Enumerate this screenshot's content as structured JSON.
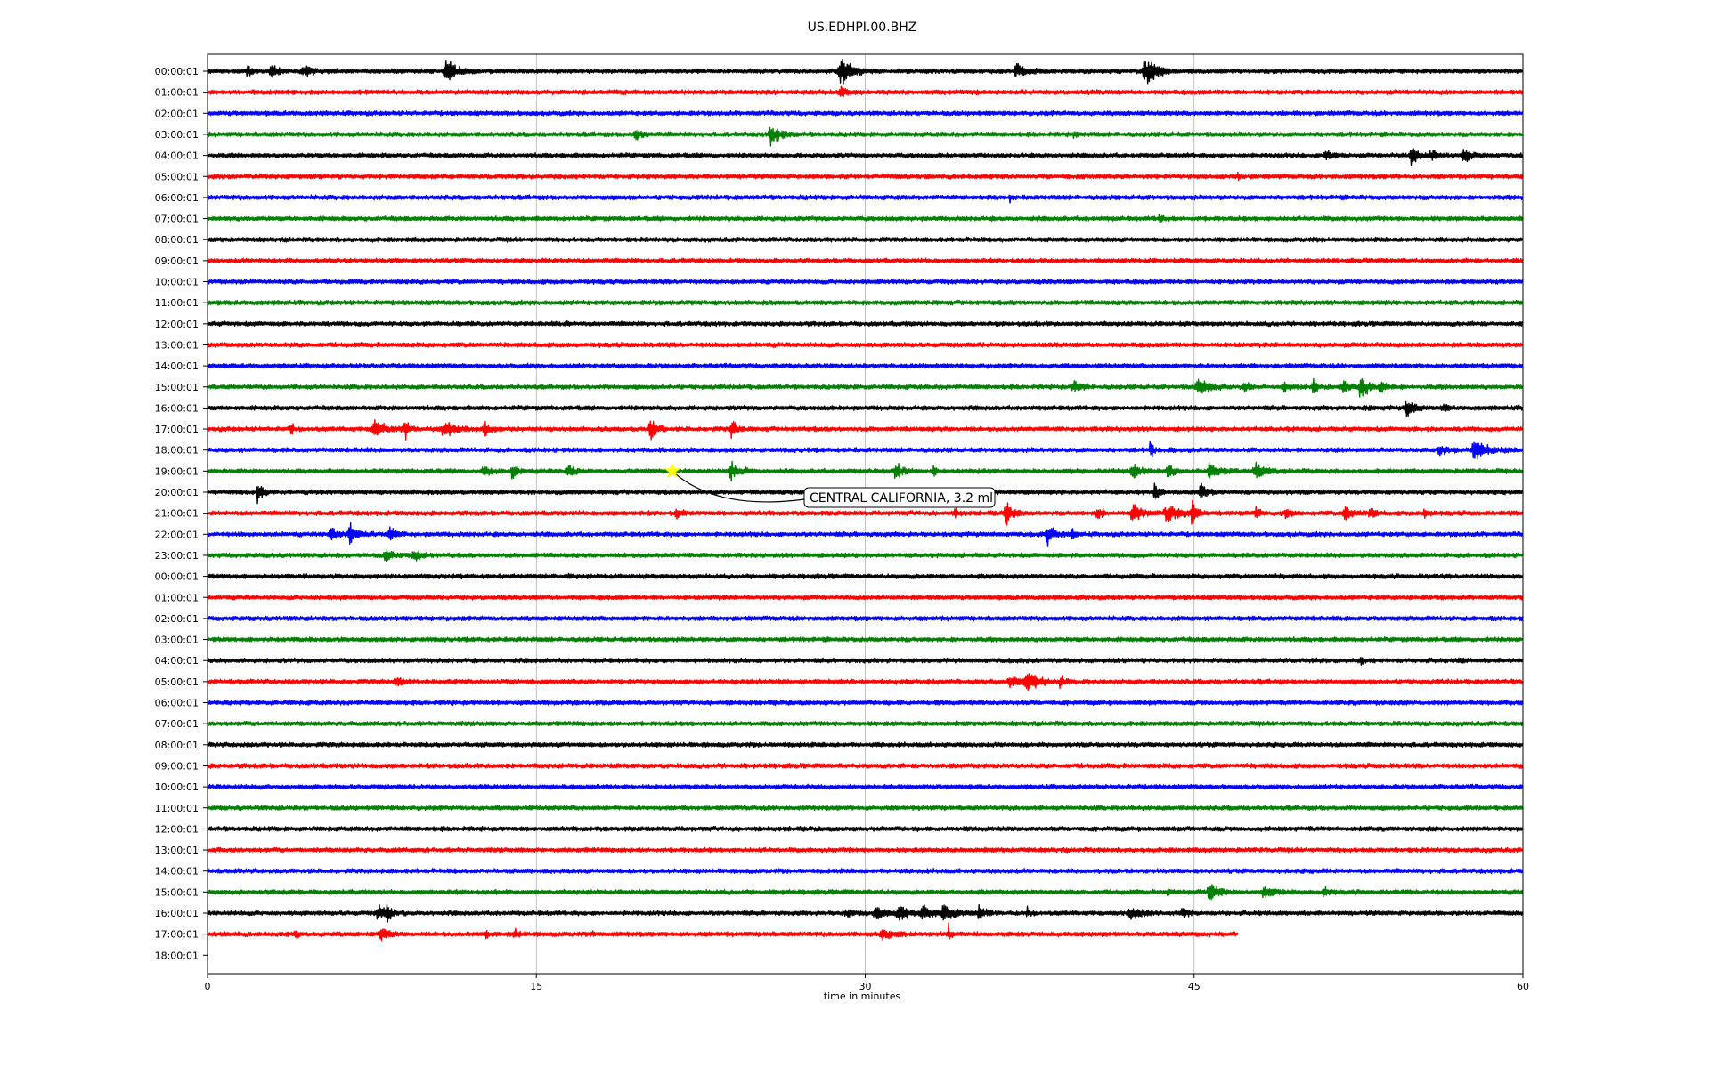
{
  "chart_data": {
    "type": "line",
    "title": "US.EDHPI.00.BHZ",
    "xlabel": "time in minutes",
    "ylabel": "",
    "xlim": [
      0,
      60
    ],
    "xticks": [
      0,
      15,
      30,
      45,
      60
    ],
    "grid": "vertical",
    "series_colors": [
      "#000000",
      "#ff0000",
      "#0000ff",
      "#008000"
    ],
    "rows": [
      {
        "label": "00:00:01",
        "end": 60,
        "events": [
          [
            1.8,
            0.4,
            0.6
          ],
          [
            2.9,
            0.5,
            0.8
          ],
          [
            4.4,
            1.0,
            0.4
          ],
          [
            10.9,
            1.0,
            1.2
          ],
          [
            28.9,
            1.0,
            1.3
          ],
          [
            36.9,
            0.8,
            0.6
          ],
          [
            42.8,
            1.0,
            1.4
          ]
        ]
      },
      {
        "label": "01:00:01",
        "end": 60,
        "events": [
          [
            28.9,
            0.6,
            0.6
          ]
        ]
      },
      {
        "label": "02:00:01",
        "end": 60,
        "events": []
      },
      {
        "label": "03:00:01",
        "end": 60,
        "events": [
          [
            19.5,
            0.5,
            0.7
          ],
          [
            25.7,
            0.8,
            1.0
          ],
          [
            39.5,
            0.2,
            0.3
          ]
        ]
      },
      {
        "label": "04:00:01",
        "end": 60,
        "events": [
          [
            51.0,
            0.6,
            0.6
          ],
          [
            54.9,
            0.6,
            0.9
          ],
          [
            55.8,
            0.5,
            0.6
          ],
          [
            57.3,
            0.6,
            0.7
          ]
        ]
      },
      {
        "label": "05:00:01",
        "end": 60,
        "events": [
          [
            47.0,
            0.2,
            0.3
          ]
        ]
      },
      {
        "label": "06:00:01",
        "end": 60,
        "events": [
          [
            36.6,
            0.2,
            0.3
          ]
        ]
      },
      {
        "label": "07:00:01",
        "end": 60,
        "events": [
          [
            43.4,
            0.4,
            0.3
          ]
        ]
      },
      {
        "label": "08:00:01",
        "end": 60,
        "events": []
      },
      {
        "label": "09:00:01",
        "end": 60,
        "events": []
      },
      {
        "label": "10:00:01",
        "end": 60,
        "events": []
      },
      {
        "label": "11:00:01",
        "end": 60,
        "events": [
          [
            22.1,
            0.2,
            0.2
          ]
        ]
      },
      {
        "label": "12:00:01",
        "end": 60,
        "events": [
          [
            16.4,
            0.2,
            0.2
          ]
        ]
      },
      {
        "label": "13:00:01",
        "end": 60,
        "events": []
      },
      {
        "label": "14:00:01",
        "end": 60,
        "events": []
      },
      {
        "label": "15:00:01",
        "end": 60,
        "events": [
          [
            39.5,
            0.6,
            0.6
          ],
          [
            45.2,
            1.0,
            0.7
          ],
          [
            47.3,
            0.6,
            0.4
          ],
          [
            49.1,
            0.5,
            0.4
          ],
          [
            50.4,
            0.3,
            1.0
          ],
          [
            51.8,
            0.6,
            0.5
          ],
          [
            52.6,
            0.6,
            1.4
          ],
          [
            53.5,
            0.6,
            0.5
          ]
        ]
      },
      {
        "label": "16:00:01",
        "end": 60,
        "events": [
          [
            52.8,
            0.3,
            0.3
          ],
          [
            54.7,
            0.6,
            1.0
          ],
          [
            56.4,
            0.3,
            0.4
          ]
        ]
      },
      {
        "label": "17:00:01",
        "end": 60,
        "events": [
          [
            3.8,
            0.3,
            0.5
          ],
          [
            7.6,
            1.0,
            0.8
          ],
          [
            9.0,
            0.5,
            0.8
          ],
          [
            10.8,
            1.2,
            0.7
          ],
          [
            12.6,
            0.6,
            0.6
          ],
          [
            20.2,
            0.6,
            1.0
          ],
          [
            23.9,
            0.4,
            1.0
          ]
        ]
      },
      {
        "label": "18:00:01",
        "end": 60,
        "events": [
          [
            43.0,
            0.2,
            1.5
          ],
          [
            56.2,
            0.6,
            0.6
          ],
          [
            57.8,
            1.2,
            0.9
          ]
        ]
      },
      {
        "label": "19:00:01",
        "end": 60,
        "events": [
          [
            12.6,
            0.5,
            0.5
          ],
          [
            13.9,
            0.4,
            0.9
          ],
          [
            16.4,
            0.6,
            0.6
          ],
          [
            23.9,
            0.8,
            0.9
          ],
          [
            31.4,
            0.6,
            0.8
          ],
          [
            33.1,
            0.2,
            1.2
          ],
          [
            42.2,
            0.8,
            0.8
          ],
          [
            43.8,
            0.4,
            1.0
          ],
          [
            45.7,
            0.8,
            0.8
          ],
          [
            47.8,
            0.8,
            0.7
          ]
        ]
      },
      {
        "label": "20:00:01",
        "end": 60,
        "events": [
          [
            2.3,
            0.4,
            1.2
          ],
          [
            43.2,
            0.4,
            0.8
          ],
          [
            45.3,
            0.5,
            0.9
          ]
        ]
      },
      {
        "label": "21:00:01",
        "end": 60,
        "events": [
          [
            21.4,
            0.5,
            0.4
          ],
          [
            34.1,
            0.3,
            0.4
          ],
          [
            36.4,
            0.6,
            1.1
          ],
          [
            40.6,
            0.4,
            0.8
          ],
          [
            42.2,
            0.8,
            0.8
          ],
          [
            43.8,
            1.2,
            0.9
          ],
          [
            44.9,
            0.4,
            1.3
          ],
          [
            47.8,
            0.4,
            0.6
          ],
          [
            49.2,
            0.4,
            0.5
          ],
          [
            51.9,
            0.6,
            0.8
          ],
          [
            53.0,
            0.4,
            0.6
          ],
          [
            55.5,
            0.4,
            0.5
          ]
        ]
      },
      {
        "label": "22:00:01",
        "end": 60,
        "events": [
          [
            5.6,
            0.6,
            0.7
          ],
          [
            6.5,
            0.7,
            1.0
          ],
          [
            8.3,
            0.5,
            0.8
          ],
          [
            38.3,
            0.6,
            1.0
          ],
          [
            39.4,
            0.3,
            0.6
          ]
        ]
      },
      {
        "label": "23:00:01",
        "end": 60,
        "events": [
          [
            8.1,
            0.6,
            0.6
          ],
          [
            9.4,
            0.6,
            0.6
          ]
        ]
      },
      {
        "label": "00:00:01",
        "end": 60,
        "events": [
          [
            16.5,
            0.2,
            0.3
          ]
        ]
      },
      {
        "label": "01:00:01",
        "end": 60,
        "events": []
      },
      {
        "label": "02:00:01",
        "end": 60,
        "events": [
          [
            44.3,
            0.2,
            0.2
          ]
        ]
      },
      {
        "label": "03:00:01",
        "end": 60,
        "events": []
      },
      {
        "label": "04:00:01",
        "end": 60,
        "events": [
          [
            52.6,
            0.3,
            0.3
          ],
          [
            57.1,
            0.3,
            0.3
          ],
          [
            60.0,
            0.2,
            0.3
          ]
        ]
      },
      {
        "label": "05:00:01",
        "end": 60,
        "events": [
          [
            8.6,
            0.6,
            0.4
          ],
          [
            36.6,
            0.8,
            0.5
          ],
          [
            37.4,
            1.0,
            1.0
          ],
          [
            38.9,
            0.4,
            0.5
          ]
        ]
      },
      {
        "label": "06:00:01",
        "end": 60,
        "events": []
      },
      {
        "label": "07:00:01",
        "end": 60,
        "events": []
      },
      {
        "label": "08:00:01",
        "end": 60,
        "events": []
      },
      {
        "label": "09:00:01",
        "end": 60,
        "events": []
      },
      {
        "label": "10:00:01",
        "end": 60,
        "events": []
      },
      {
        "label": "11:00:01",
        "end": 60,
        "events": []
      },
      {
        "label": "12:00:01",
        "end": 60,
        "events": []
      },
      {
        "label": "13:00:01",
        "end": 60,
        "events": []
      },
      {
        "label": "14:00:01",
        "end": 60,
        "events": []
      },
      {
        "label": "15:00:01",
        "end": 60,
        "events": [
          [
            43.8,
            0.2,
            0.6
          ],
          [
            45.7,
            0.6,
            1.3
          ],
          [
            48.2,
            0.9,
            0.5
          ],
          [
            50.9,
            0.3,
            0.7
          ]
        ]
      },
      {
        "label": "16:00:01",
        "end": 60,
        "events": [
          [
            7.8,
            0.8,
            0.7
          ],
          [
            8.2,
            0.3,
            0.9
          ],
          [
            29.1,
            0.5,
            0.4
          ],
          [
            30.5,
            0.8,
            0.6
          ],
          [
            31.5,
            0.6,
            1.0
          ],
          [
            32.6,
            0.8,
            0.7
          ],
          [
            33.6,
            1.0,
            0.7
          ],
          [
            35.2,
            0.6,
            0.6
          ],
          [
            37.4,
            0.3,
            0.4
          ],
          [
            42.1,
            1.0,
            0.5
          ],
          [
            44.5,
            0.5,
            0.5
          ]
        ]
      },
      {
        "label": "17:00:01",
        "end": 47,
        "events": [
          [
            4.0,
            0.3,
            0.4
          ],
          [
            7.9,
            0.6,
            0.6
          ],
          [
            12.7,
            0.2,
            0.7
          ],
          [
            14.0,
            0.4,
            0.6
          ],
          [
            17.6,
            0.2,
            0.4
          ],
          [
            30.8,
            0.8,
            0.6
          ],
          [
            33.8,
            0.2,
            0.9
          ]
        ]
      },
      {
        "label": "18:00:01",
        "end": 0,
        "events": []
      }
    ],
    "annotation": {
      "text": "CENTRAL CALIFORNIA, 3.2 ml",
      "row": 19,
      "x": 21.2,
      "marker": "star",
      "marker_color": "#ffff00"
    }
  }
}
